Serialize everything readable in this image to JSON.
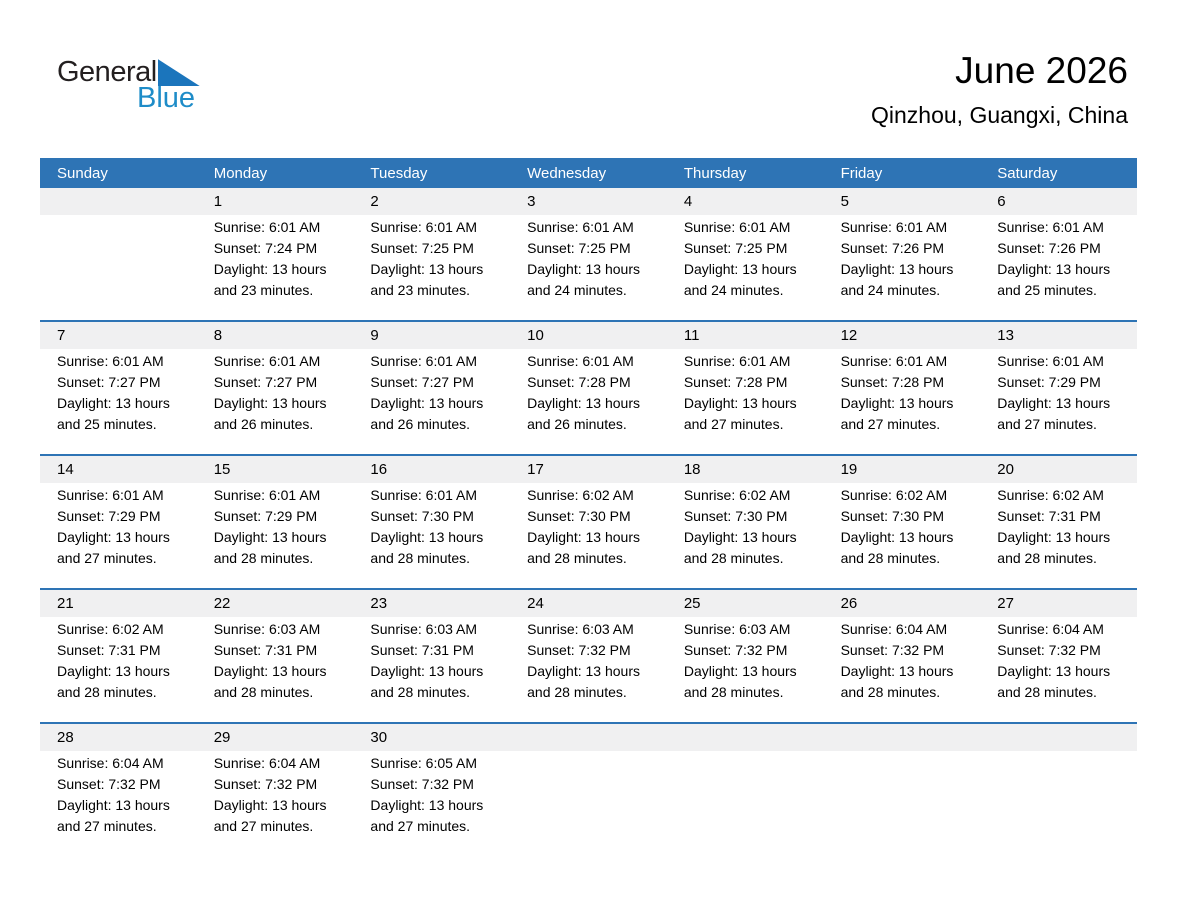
{
  "logo": {
    "word1": "General",
    "word2": "Blue"
  },
  "header": {
    "month_year": "June 2026",
    "location": "Qinzhou, Guangxi, China"
  },
  "weekday_headers": [
    "Sunday",
    "Monday",
    "Tuesday",
    "Wednesday",
    "Thursday",
    "Friday",
    "Saturday"
  ],
  "labels": {
    "sunrise": "Sunrise:",
    "sunset": "Sunset:",
    "daylight": "Daylight:"
  },
  "colors": {
    "header_bar_blue": "#2E74B5",
    "week_divider_blue": "#2E74B5",
    "day_number_band_gray": "#F0F0F1",
    "logo_text_black": "#231F20",
    "logo_triangle_blue": "#1B75BC",
    "logo_blue": "#1E8CC8",
    "weekday_text": "#FFFFFF"
  },
  "calendar": {
    "weeks": [
      [
        null,
        {
          "day": "1",
          "sunrise": "6:01 AM",
          "sunset": "7:24 PM",
          "daylight": "13 hours and 23 minutes."
        },
        {
          "day": "2",
          "sunrise": "6:01 AM",
          "sunset": "7:25 PM",
          "daylight": "13 hours and 23 minutes."
        },
        {
          "day": "3",
          "sunrise": "6:01 AM",
          "sunset": "7:25 PM",
          "daylight": "13 hours and 24 minutes."
        },
        {
          "day": "4",
          "sunrise": "6:01 AM",
          "sunset": "7:25 PM",
          "daylight": "13 hours and 24 minutes."
        },
        {
          "day": "5",
          "sunrise": "6:01 AM",
          "sunset": "7:26 PM",
          "daylight": "13 hours and 24 minutes."
        },
        {
          "day": "6",
          "sunrise": "6:01 AM",
          "sunset": "7:26 PM",
          "daylight": "13 hours and 25 minutes."
        }
      ],
      [
        {
          "day": "7",
          "sunrise": "6:01 AM",
          "sunset": "7:27 PM",
          "daylight": "13 hours and 25 minutes."
        },
        {
          "day": "8",
          "sunrise": "6:01 AM",
          "sunset": "7:27 PM",
          "daylight": "13 hours and 26 minutes."
        },
        {
          "day": "9",
          "sunrise": "6:01 AM",
          "sunset": "7:27 PM",
          "daylight": "13 hours and 26 minutes."
        },
        {
          "day": "10",
          "sunrise": "6:01 AM",
          "sunset": "7:28 PM",
          "daylight": "13 hours and 26 minutes."
        },
        {
          "day": "11",
          "sunrise": "6:01 AM",
          "sunset": "7:28 PM",
          "daylight": "13 hours and 27 minutes."
        },
        {
          "day": "12",
          "sunrise": "6:01 AM",
          "sunset": "7:28 PM",
          "daylight": "13 hours and 27 minutes."
        },
        {
          "day": "13",
          "sunrise": "6:01 AM",
          "sunset": "7:29 PM",
          "daylight": "13 hours and 27 minutes."
        }
      ],
      [
        {
          "day": "14",
          "sunrise": "6:01 AM",
          "sunset": "7:29 PM",
          "daylight": "13 hours and 27 minutes."
        },
        {
          "day": "15",
          "sunrise": "6:01 AM",
          "sunset": "7:29 PM",
          "daylight": "13 hours and 28 minutes."
        },
        {
          "day": "16",
          "sunrise": "6:01 AM",
          "sunset": "7:30 PM",
          "daylight": "13 hours and 28 minutes."
        },
        {
          "day": "17",
          "sunrise": "6:02 AM",
          "sunset": "7:30 PM",
          "daylight": "13 hours and 28 minutes."
        },
        {
          "day": "18",
          "sunrise": "6:02 AM",
          "sunset": "7:30 PM",
          "daylight": "13 hours and 28 minutes."
        },
        {
          "day": "19",
          "sunrise": "6:02 AM",
          "sunset": "7:30 PM",
          "daylight": "13 hours and 28 minutes."
        },
        {
          "day": "20",
          "sunrise": "6:02 AM",
          "sunset": "7:31 PM",
          "daylight": "13 hours and 28 minutes."
        }
      ],
      [
        {
          "day": "21",
          "sunrise": "6:02 AM",
          "sunset": "7:31 PM",
          "daylight": "13 hours and 28 minutes."
        },
        {
          "day": "22",
          "sunrise": "6:03 AM",
          "sunset": "7:31 PM",
          "daylight": "13 hours and 28 minutes."
        },
        {
          "day": "23",
          "sunrise": "6:03 AM",
          "sunset": "7:31 PM",
          "daylight": "13 hours and 28 minutes."
        },
        {
          "day": "24",
          "sunrise": "6:03 AM",
          "sunset": "7:32 PM",
          "daylight": "13 hours and 28 minutes."
        },
        {
          "day": "25",
          "sunrise": "6:03 AM",
          "sunset": "7:32 PM",
          "daylight": "13 hours and 28 minutes."
        },
        {
          "day": "26",
          "sunrise": "6:04 AM",
          "sunset": "7:32 PM",
          "daylight": "13 hours and 28 minutes."
        },
        {
          "day": "27",
          "sunrise": "6:04 AM",
          "sunset": "7:32 PM",
          "daylight": "13 hours and 28 minutes."
        }
      ],
      [
        {
          "day": "28",
          "sunrise": "6:04 AM",
          "sunset": "7:32 PM",
          "daylight": "13 hours and 27 minutes."
        },
        {
          "day": "29",
          "sunrise": "6:04 AM",
          "sunset": "7:32 PM",
          "daylight": "13 hours and 27 minutes."
        },
        {
          "day": "30",
          "sunrise": "6:05 AM",
          "sunset": "7:32 PM",
          "daylight": "13 hours and 27 minutes."
        },
        null,
        null,
        null,
        null
      ]
    ]
  }
}
